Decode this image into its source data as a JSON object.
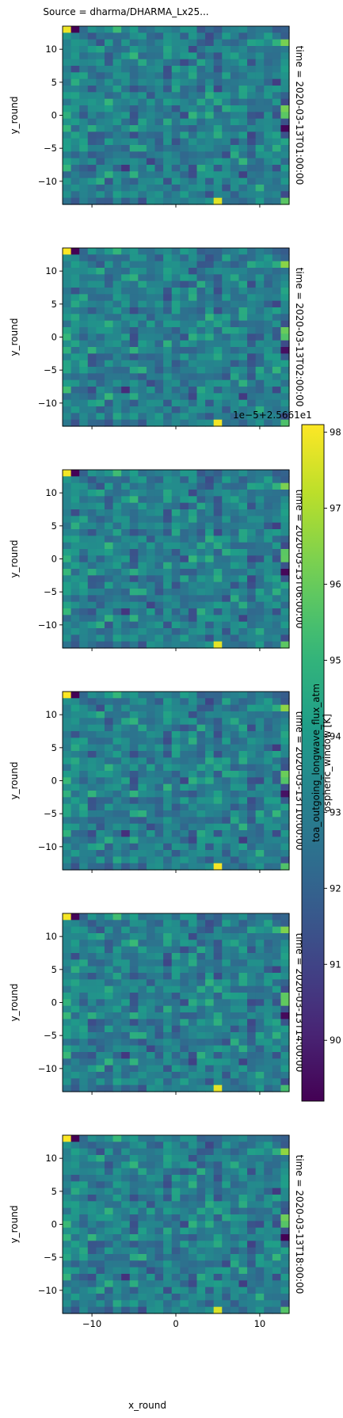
{
  "chart_data": {
    "type": "heatmap",
    "title": "Source = dharma/DHARMA_Lx25...",
    "xlabel": "x_round",
    "ylabel": "y_round",
    "x_ticks": [
      -10,
      0,
      10
    ],
    "y_ticks": [
      10,
      5,
      0,
      -5,
      -10
    ],
    "xlim": [
      -13.5,
      13.5
    ],
    "ylim": [
      -13.5,
      13.5
    ],
    "grid_size": [
      27,
      27
    ],
    "colormap": "viridis",
    "colorbar": {
      "label_line1": "toa_outgoing_longwave_flux_atm",
      "label_line2": "ospheric_window [K]",
      "offset_label": "1e−5+2.5661e1",
      "ticks": [
        90,
        91,
        92,
        93,
        94,
        95,
        96,
        97,
        98
      ],
      "vmin": 89.2,
      "vmax": 98.1
    },
    "panels": [
      {
        "facet_label": "time = 2020-03-13T01:00:00"
      },
      {
        "facet_label": "time = 2020-03-13T02:00:00"
      },
      {
        "facet_label": "time = 2020-03-13T06:00:00"
      },
      {
        "facet_label": "time = 2020-03-13T10:00:00"
      },
      {
        "facet_label": "time = 2020-03-13T14:00:00"
      },
      {
        "facet_label": "time = 2020-03-13T18:00:00"
      }
    ],
    "notable_cells": [
      {
        "x": -13,
        "y": 13,
        "value": 98.1
      },
      {
        "x": -12,
        "y": 13,
        "value": 89.2
      },
      {
        "x": 13,
        "y": 11,
        "value": 96.4
      },
      {
        "x": 13,
        "y": 1,
        "value": 96.0
      },
      {
        "x": 13,
        "y": 0,
        "value": 95.7
      },
      {
        "x": 13,
        "y": -2,
        "value": 89.4
      },
      {
        "x": 5,
        "y": -13,
        "value": 97.8
      },
      {
        "x": 13,
        "y": -13,
        "value": 95.6
      }
    ]
  }
}
